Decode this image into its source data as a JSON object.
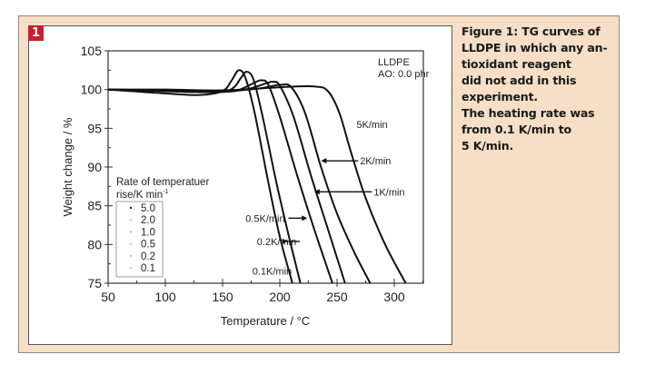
{
  "figure": {
    "badge": "1",
    "caption_lines": [
      "Figure 1: TG curves of",
      "LLDPE in which any an-",
      "tioxidant reagent",
      "did not add in this",
      "experiment.",
      "The heating rate was",
      "from 0.1 K/min to",
      "5 K/min."
    ],
    "colors": {
      "background": "#f6dfc6",
      "badge": "#c8202a",
      "plot_background": "#ffffff",
      "line": "#111111"
    }
  },
  "chart_data": {
    "type": "line",
    "title": "",
    "xlabel": "Temperature / °C",
    "ylabel": "Weight change / %",
    "xlim": [
      50,
      325
    ],
    "ylim": [
      75,
      105
    ],
    "xticks": [
      50,
      100,
      150,
      200,
      250,
      300
    ],
    "yticks": [
      75,
      80,
      85,
      90,
      95,
      100,
      105
    ],
    "grid": false,
    "annotation": [
      "LLDPE",
      "AO: 0.0 phr"
    ],
    "legend": {
      "title_line1": "Rate of temperatuer",
      "title_line2": "rise/K min",
      "title_superscript": "-1",
      "position": "lower-left",
      "entries": [
        "5.0",
        "2.0",
        "1.0",
        "0.5",
        "0.2",
        "0.1"
      ]
    },
    "series": [
      {
        "name": "0.1K/min",
        "label": "0.1K/min",
        "x": [
          50,
          70,
          100,
          130,
          150,
          158,
          164,
          170,
          178,
          190,
          200,
          211
        ],
        "y": [
          100.0,
          99.8,
          99.5,
          99.3,
          99.8,
          101.2,
          102.5,
          101.5,
          97.0,
          88.0,
          81.0,
          75.0
        ]
      },
      {
        "name": "0.2K/min",
        "label": "0.2K/min",
        "x": [
          50,
          80,
          120,
          150,
          160,
          166,
          171,
          177,
          185,
          197,
          208,
          218
        ],
        "y": [
          100.0,
          99.9,
          99.7,
          99.7,
          100.3,
          101.5,
          102.3,
          101.3,
          96.5,
          88.0,
          81.0,
          75.0
        ]
      },
      {
        "name": "0.5K/min",
        "label": "0.5K/min",
        "x": [
          50,
          100,
          150,
          165,
          178,
          184,
          190,
          200,
          215,
          230,
          246
        ],
        "y": [
          100.0,
          99.8,
          99.7,
          100.0,
          100.9,
          101.2,
          100.6,
          96.5,
          89.0,
          82.0,
          75.0
        ]
      },
      {
        "name": "1K/min",
        "label": "1K/min",
        "x": [
          50,
          100,
          150,
          170,
          188,
          194,
          200,
          212,
          227,
          242,
          257
        ],
        "y": [
          100.0,
          99.9,
          99.8,
          100.0,
          100.8,
          101.0,
          100.5,
          96.5,
          89.0,
          82.0,
          75.0
        ]
      },
      {
        "name": "2K/min",
        "label": "2K/min",
        "x": [
          50,
          100,
          150,
          180,
          200,
          210,
          222,
          236,
          250,
          265,
          279
        ],
        "y": [
          100.0,
          99.9,
          99.8,
          100.1,
          100.6,
          100.3,
          97.0,
          90.0,
          84.0,
          79.0,
          75.0
        ]
      },
      {
        "name": "5K/min",
        "label": "5K/min",
        "x": [
          50,
          100,
          150,
          200,
          230,
          242,
          252,
          262,
          275,
          292,
          310
        ],
        "y": [
          100.0,
          100.0,
          99.9,
          100.3,
          100.4,
          99.8,
          97.0,
          92.0,
          86.0,
          80.0,
          75.0
        ]
      }
    ],
    "curve_labels": [
      {
        "text": "5K/min",
        "x": 267,
        "y": 95.5,
        "arrow": false
      },
      {
        "text": "2K/min",
        "x": 270,
        "y": 90.8,
        "arrow_to_x": 236
      },
      {
        "text": "1K/min",
        "x": 282,
        "y": 86.8,
        "arrow_to_x": 230
      },
      {
        "text": "0.5K/min",
        "x": 170,
        "y": 83.4,
        "arrow_to_x": 224
      },
      {
        "text": "0.2K/min",
        "x": 180,
        "y": 80.4,
        "arrow_to_x": 207
      },
      {
        "text": "0.1K/min",
        "x": 176,
        "y": 76.6,
        "arrow": false
      }
    ]
  }
}
